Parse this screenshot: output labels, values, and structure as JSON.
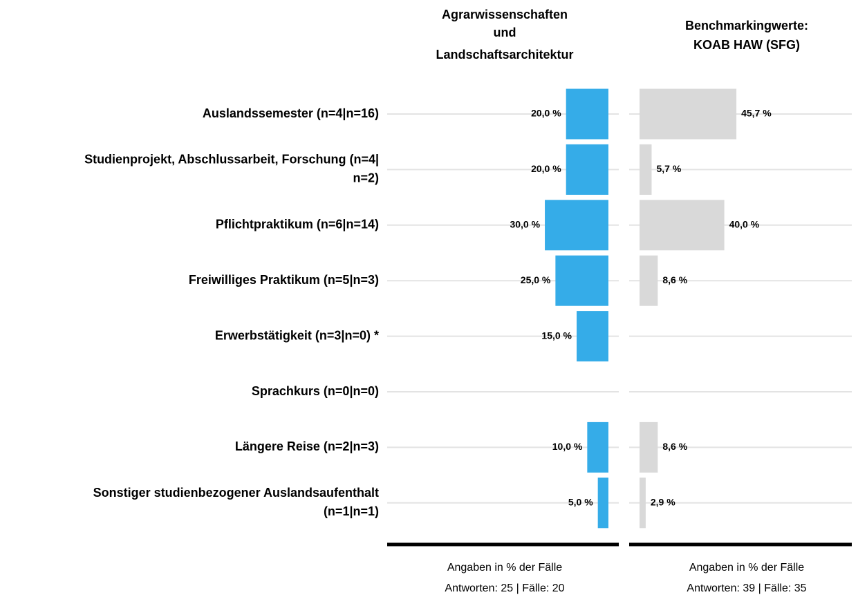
{
  "chart_data": {
    "type": "bar",
    "categories": [
      [
        "Auslandssemester (n=4|n=16)"
      ],
      [
        "Studienprojekt, Abschlussarbeit, Forschung (n=4|",
        "n=2)"
      ],
      [
        "Pflichtpraktikum (n=6|n=14)"
      ],
      [
        "Freiwilliges Praktikum (n=5|n=3)"
      ],
      [
        "Erwerbstätigkeit (n=3|n=0) *"
      ],
      [
        "Sprachkurs (n=0|n=0)"
      ],
      [
        "Längere Reise (n=2|n=3)"
      ],
      [
        "Sonstiger studienbezogener Auslandsaufenthalt",
        "(n=1|n=1)"
      ]
    ],
    "series": [
      {
        "name": [
          "Agrarwissenschaften",
          "und",
          "Landschaftsarchitektur"
        ],
        "color": "#35ace8",
        "values": [
          20,
          20,
          30,
          25,
          15,
          null,
          10,
          5
        ],
        "value_labels": [
          "20,0 %",
          "20,0 %",
          "30,0 %",
          "25,0 %",
          "15,0 %",
          null,
          "10,0 %",
          "5,0 %"
        ],
        "notes": [
          "Angaben in % der Fälle",
          "Antworten: 25 | Fälle: 20"
        ]
      },
      {
        "name": [
          "Benchmarkingwerte:",
          "KOAB HAW (SFG)"
        ],
        "color": "#d9d9d9",
        "values": [
          45.7,
          5.7,
          40,
          8.6,
          null,
          null,
          8.6,
          2.9
        ],
        "value_labels": [
          "45,7 %",
          "5,7 %",
          "40,0 %",
          "8,6 %",
          null,
          null,
          "8,6 %",
          "2,9 %"
        ],
        "notes": [
          "Angaben in % der Fälle",
          "Antworten: 39 | Fälle: 35"
        ]
      }
    ]
  }
}
